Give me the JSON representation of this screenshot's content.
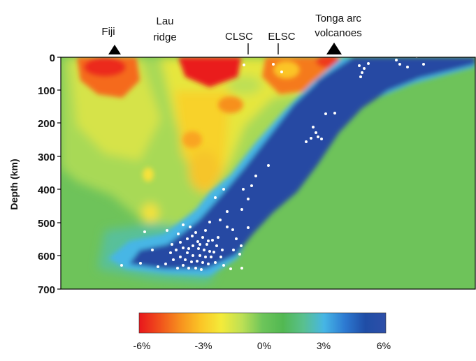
{
  "top_labels": {
    "fiji": "Fiji",
    "lau_1": "Lau",
    "lau_2": "ridge",
    "clsc": "CLSC",
    "elsc": "ELSC",
    "tonga_1": "Tonga arc",
    "tonga_2": "volcanoes"
  },
  "y_axis": {
    "title": "Depth (km)",
    "ticks": [
      "0",
      "100",
      "200",
      "300",
      "400",
      "500",
      "600",
      "700"
    ]
  },
  "colorbar": {
    "ticks": [
      "-6%",
      "-3%",
      "0%",
      "3%",
      "6%"
    ],
    "colors": [
      "#e8161c",
      "#f0501c",
      "#f7901e",
      "#fbc526",
      "#f4eb3a",
      "#bde055",
      "#6dc55a",
      "#52b852",
      "#59c08f",
      "#46b6e5",
      "#2d7ad2",
      "#1f4da6",
      "#2e4fa8"
    ]
  }
}
